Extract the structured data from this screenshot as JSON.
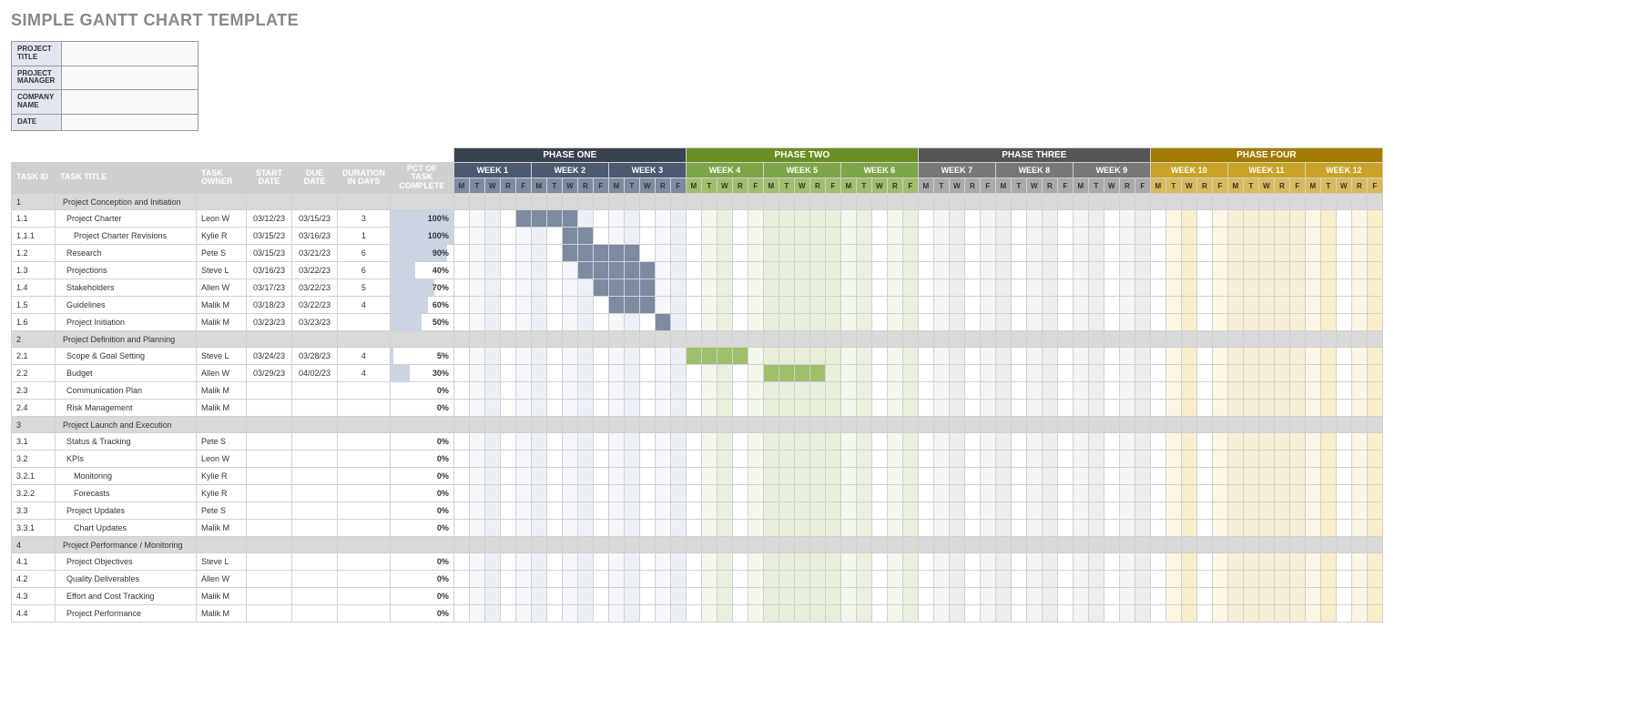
{
  "title": "SIMPLE GANTT CHART TEMPLATE",
  "meta_fields": [
    {
      "label": "PROJECT TITLE",
      "value": ""
    },
    {
      "label": "PROJECT MANAGER",
      "value": ""
    },
    {
      "label": "COMPANY NAME",
      "value": ""
    },
    {
      "label": "DATE",
      "value": ""
    }
  ],
  "task_headers": {
    "id": "TASK ID",
    "title": "TASK TITLE",
    "owner": "TASK OWNER",
    "start": "START DATE",
    "due": "DUE DATE",
    "dur": "DURATION IN DAYS",
    "pct": "PCT OF TASK COMPLETE"
  },
  "day_labels": [
    "M",
    "T",
    "W",
    "R",
    "F"
  ],
  "phases": [
    {
      "name": "PHASE ONE",
      "header_bg": "#39424e",
      "week_bg": "#4b5a6e",
      "day_bg": "#7d8aa0",
      "tints": [
        "#ffffff",
        "#f5f7fa",
        "#ecf0f6",
        "#ffffff",
        "#f5f7fa",
        "#ecf0f6",
        "#ffffff",
        "#f5f7fa",
        "#ecf0f6",
        "#ffffff",
        "#f5f7fa",
        "#ecf0f6",
        "#ffffff",
        "#f5f7fa",
        "#ecf0f6"
      ],
      "bar": "#7d8aa0",
      "weeks": [
        "WEEK 1",
        "WEEK 2",
        "WEEK 3"
      ]
    },
    {
      "name": "PHASE TWO",
      "header_bg": "#6b8e23",
      "week_bg": "#7da547",
      "day_bg": "#9fbf6b",
      "tints": [
        "#ffffff",
        "#f3f7ec",
        "#e9f0de",
        "#ffffff",
        "#f3f7ec",
        "#e9f0de",
        "#ffffff",
        "#f3f7ec",
        "#e9f0de",
        "#ffffff",
        "#f3f7ec",
        "#e9f0de",
        "#ffffff",
        "#f3f7ec",
        "#e9f0de"
      ],
      "bar": "#9fbf6b",
      "weeks": [
        "WEEK 4",
        "WEEK 5",
        "WEEK 6"
      ]
    },
    {
      "name": "PHASE THREE",
      "header_bg": "#555555",
      "week_bg": "#777777",
      "day_bg": "#aaaaaa",
      "tints": [
        "#ffffff",
        "#f5f5f5",
        "#ededed",
        "#ffffff",
        "#f5f5f5",
        "#ededed",
        "#ffffff",
        "#f5f5f5",
        "#ededed",
        "#ffffff",
        "#f5f5f5",
        "#ededed",
        "#ffffff",
        "#f5f5f5",
        "#ededed"
      ],
      "bar": "#aaaaaa",
      "weeks": [
        "WEEK 7",
        "WEEK 8",
        "WEEK 9"
      ]
    },
    {
      "name": "PHASE FOUR",
      "header_bg": "#a17c00",
      "week_bg": "#c9a227",
      "day_bg": "#d9b95a",
      "tints": [
        "#ffffff",
        "#fcf6e6",
        "#f8eecb",
        "#ffffff",
        "#fcf6e6",
        "#f8eecb",
        "#ffffff",
        "#fcf6e6",
        "#f8eecb",
        "#ffffff",
        "#fcf6e6",
        "#f8eecb",
        "#ffffff",
        "#fcf6e6",
        "#f8eecb"
      ],
      "bar": "#d9b95a",
      "weeks": [
        "WEEK 10",
        "WEEK 11",
        "WEEK 12"
      ]
    }
  ],
  "highlight_cols": {
    "1": [
      5,
      6,
      7,
      8,
      9
    ],
    "3": [
      5,
      6,
      7,
      8,
      9
    ]
  },
  "rows": [
    {
      "type": "section",
      "id": "1",
      "title": "Project Conception and Initiation"
    },
    {
      "type": "task",
      "id": "1.1",
      "title": "Project Charter",
      "indent": 1,
      "owner": "Leon W",
      "start": "03/12/23",
      "due": "03/15/23",
      "dur": "3",
      "pct": "100%",
      "pct_val": 100,
      "bar": {
        "phase": 0,
        "start": 4,
        "len": 4
      }
    },
    {
      "type": "task",
      "id": "1.1.1",
      "title": "Project Charter Revisions",
      "indent": 2,
      "owner": "Kylie R",
      "start": "03/15/23",
      "due": "03/16/23",
      "dur": "1",
      "pct": "100%",
      "pct_val": 100,
      "bar": {
        "phase": 0,
        "start": 7,
        "len": 2
      }
    },
    {
      "type": "task",
      "id": "1.2",
      "title": "Research",
      "indent": 1,
      "owner": "Pete S",
      "start": "03/15/23",
      "due": "03/21/23",
      "dur": "6",
      "pct": "90%",
      "pct_val": 90,
      "bar": {
        "phase": 0,
        "start": 7,
        "len": 5
      }
    },
    {
      "type": "task",
      "id": "1.3",
      "title": "Projections",
      "indent": 1,
      "owner": "Steve L",
      "start": "03/16/23",
      "due": "03/22/23",
      "dur": "6",
      "pct": "40%",
      "pct_val": 40,
      "bar": {
        "phase": 0,
        "start": 8,
        "len": 5
      }
    },
    {
      "type": "task",
      "id": "1.4",
      "title": "Stakeholders",
      "indent": 1,
      "owner": "Allen W",
      "start": "03/17/23",
      "due": "03/22/23",
      "dur": "5",
      "pct": "70%",
      "pct_val": 70,
      "bar": {
        "phase": 0,
        "start": 9,
        "len": 4
      }
    },
    {
      "type": "task",
      "id": "1.5",
      "title": "Guidelines",
      "indent": 1,
      "owner": "Malik M",
      "start": "03/18/23",
      "due": "03/22/23",
      "dur": "4",
      "pct": "60%",
      "pct_val": 60,
      "bar": {
        "phase": 0,
        "start": 10,
        "len": 3
      }
    },
    {
      "type": "task",
      "id": "1.6",
      "title": "Project Initiation",
      "indent": 1,
      "owner": "Malik M",
      "start": "03/23/23",
      "due": "03/23/23",
      "dur": "",
      "pct": "50%",
      "pct_val": 50,
      "bar": {
        "phase": 0,
        "start": 13,
        "len": 1
      }
    },
    {
      "type": "section",
      "id": "2",
      "title": "Project Definition and Planning"
    },
    {
      "type": "task",
      "id": "2.1",
      "title": "Scope & Goal Setting",
      "indent": 1,
      "owner": "Steve L",
      "start": "03/24/23",
      "due": "03/28/23",
      "dur": "4",
      "pct": "5%",
      "pct_val": 5,
      "bar": {
        "phase": 1,
        "start": 0,
        "len": 4
      }
    },
    {
      "type": "task",
      "id": "2.2",
      "title": "Budget",
      "indent": 1,
      "owner": "Allen W",
      "start": "03/29/23",
      "due": "04/02/23",
      "dur": "4",
      "pct": "30%",
      "pct_val": 30,
      "bar": {
        "phase": 1,
        "start": 5,
        "len": 4
      }
    },
    {
      "type": "task",
      "id": "2.3",
      "title": "Communication Plan",
      "indent": 1,
      "owner": "Malik M",
      "start": "",
      "due": "",
      "dur": "",
      "pct": "0%",
      "pct_val": 0
    },
    {
      "type": "task",
      "id": "2.4",
      "title": "Risk Management",
      "indent": 1,
      "owner": "Malik M",
      "start": "",
      "due": "",
      "dur": "",
      "pct": "0%",
      "pct_val": 0
    },
    {
      "type": "section",
      "id": "3",
      "title": "Project Launch and Execution"
    },
    {
      "type": "task",
      "id": "3.1",
      "title": "Status & Tracking",
      "indent": 1,
      "owner": "Pete S",
      "start": "",
      "due": "",
      "dur": "",
      "pct": "0%",
      "pct_val": 0
    },
    {
      "type": "task",
      "id": "3.2",
      "title": "KPIs",
      "indent": 1,
      "owner": "Leon W",
      "start": "",
      "due": "",
      "dur": "",
      "pct": "0%",
      "pct_val": 0
    },
    {
      "type": "task",
      "id": "3.2.1",
      "title": "Monitoring",
      "indent": 2,
      "owner": "Kylie R",
      "start": "",
      "due": "",
      "dur": "",
      "pct": "0%",
      "pct_val": 0
    },
    {
      "type": "task",
      "id": "3.2.2",
      "title": "Forecasts",
      "indent": 2,
      "owner": "Kylie R",
      "start": "",
      "due": "",
      "dur": "",
      "pct": "0%",
      "pct_val": 0
    },
    {
      "type": "task",
      "id": "3.3",
      "title": "Project Updates",
      "indent": 1,
      "owner": "Pete S",
      "start": "",
      "due": "",
      "dur": "",
      "pct": "0%",
      "pct_val": 0
    },
    {
      "type": "task",
      "id": "3.3.1",
      "title": "Chart Updates",
      "indent": 2,
      "owner": "Malik M",
      "start": "",
      "due": "",
      "dur": "",
      "pct": "0%",
      "pct_val": 0
    },
    {
      "type": "section",
      "id": "4",
      "title": "Project Performance / Monitoring"
    },
    {
      "type": "task",
      "id": "4.1",
      "title": "Project Objectives",
      "indent": 1,
      "owner": "Steve L",
      "start": "",
      "due": "",
      "dur": "",
      "pct": "0%",
      "pct_val": 0
    },
    {
      "type": "task",
      "id": "4.2",
      "title": "Quality Deliverables",
      "indent": 1,
      "owner": "Allen W",
      "start": "",
      "due": "",
      "dur": "",
      "pct": "0%",
      "pct_val": 0
    },
    {
      "type": "task",
      "id": "4.3",
      "title": "Effort and Cost Tracking",
      "indent": 1,
      "owner": "Malik M",
      "start": "",
      "due": "",
      "dur": "",
      "pct": "0%",
      "pct_val": 0
    },
    {
      "type": "task",
      "id": "4.4",
      "title": "Project Performance",
      "indent": 1,
      "owner": "Malik M",
      "start": "",
      "due": "",
      "dur": "",
      "pct": "0%",
      "pct_val": 0
    }
  ]
}
